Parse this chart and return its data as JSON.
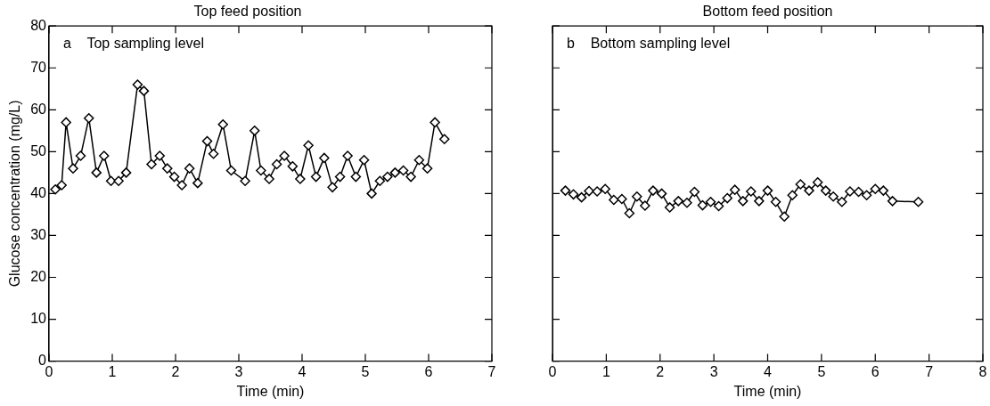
{
  "chart_data": [
    {
      "type": "line",
      "title": "Top feed position",
      "xlabel": "Time (min)",
      "ylabel": "Glucose concentration (mg/L)",
      "annotations": [
        "a    Top sampling level"
      ],
      "marker": "diamond",
      "line_style": "solid",
      "grid": false,
      "legend": false,
      "xlim": [
        0,
        7
      ],
      "xticks": [
        0,
        1,
        2,
        3,
        4,
        5,
        6,
        7
      ],
      "ylim": [
        0,
        80
      ],
      "yticks": [
        0,
        10,
        20,
        30,
        40,
        50,
        60,
        70,
        80
      ],
      "series": [
        {
          "color": "#000000",
          "x": [
            0.1,
            0.2,
            0.27,
            0.38,
            0.5,
            0.63,
            0.75,
            0.87,
            0.98,
            1.1,
            1.22,
            1.4,
            1.5,
            1.62,
            1.75,
            1.87,
            1.98,
            2.1,
            2.22,
            2.35,
            2.5,
            2.6,
            2.75,
            2.88,
            3.1,
            3.25,
            3.35,
            3.48,
            3.6,
            3.72,
            3.85,
            3.97,
            4.1,
            4.22,
            4.35,
            4.48,
            4.6,
            4.72,
            4.85,
            4.98,
            5.1,
            5.23,
            5.35,
            5.47,
            5.6,
            5.72,
            5.85,
            5.98,
            6.1,
            6.25
          ],
          "values": [
            41,
            42,
            57,
            46,
            49,
            58,
            45,
            49,
            43,
            43,
            45,
            66,
            64.5,
            47,
            49,
            46,
            44,
            42,
            46,
            42.5,
            52.5,
            49.5,
            56.5,
            45.5,
            43,
            55,
            45.5,
            43.5,
            47,
            49,
            46.5,
            43.5,
            51.5,
            44,
            48.5,
            41.5,
            44,
            49,
            44,
            48,
            40,
            43,
            44,
            45,
            45.5,
            44,
            48,
            46,
            57,
            53
          ]
        }
      ]
    },
    {
      "type": "line",
      "title": "Bottom feed position",
      "xlabel": "Time (min)",
      "annotations": [
        "b    Bottom sampling level"
      ],
      "marker": "diamond",
      "line_style": "solid",
      "grid": false,
      "legend": false,
      "tick_labels": "x",
      "xlim": [
        0,
        8
      ],
      "xticks": [
        0,
        1,
        2,
        3,
        4,
        5,
        6,
        7,
        8
      ],
      "ylim": [
        0,
        80
      ],
      "yticks": [
        0,
        10,
        20,
        30,
        40,
        50,
        60,
        70,
        80
      ],
      "series": [
        {
          "color": "#000000",
          "x": [
            0.24,
            0.39,
            0.54,
            0.68,
            0.83,
            0.98,
            1.14,
            1.29,
            1.43,
            1.57,
            1.72,
            1.87,
            2.03,
            2.18,
            2.34,
            2.5,
            2.64,
            2.79,
            2.94,
            3.09,
            3.25,
            3.39,
            3.54,
            3.69,
            3.84,
            4.0,
            4.15,
            4.31,
            4.46,
            4.61,
            4.77,
            4.93,
            5.08,
            5.22,
            5.38,
            5.53,
            5.69,
            5.84,
            6.0,
            6.15,
            6.32,
            6.8
          ],
          "values": [
            40.7,
            39.8,
            39.1,
            40.6,
            40.5,
            41.1,
            38.5,
            38.7,
            35.3,
            39.3,
            37.1,
            40.7,
            40,
            36.7,
            38.2,
            37.8,
            40.4,
            37.2,
            38,
            37,
            38.9,
            40.9,
            38.2,
            40.5,
            38.2,
            40.7,
            38,
            34.5,
            39.6,
            42.2,
            40.7,
            42.7,
            40.7,
            39.3,
            38,
            40.5,
            40.4,
            39.6,
            41.1,
            40.7,
            38.2,
            38
          ]
        }
      ]
    }
  ]
}
